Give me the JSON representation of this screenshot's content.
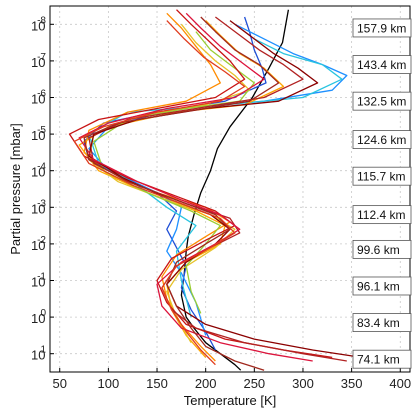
{
  "chart_data": {
    "type": "line",
    "title": "",
    "xlabel": "Temperature [K]",
    "ylabel": "Partial pressure [mbar]",
    "xlim": [
      40,
      410
    ],
    "ylim_log10": [
      1.5,
      -8.5
    ],
    "y_scale": "log",
    "y_direction": "pressure increases downward",
    "grid": true,
    "x_ticks": [
      {
        "value": 50,
        "label": "50"
      },
      {
        "value": 100,
        "label": "100"
      },
      {
        "value": 150,
        "label": "150"
      },
      {
        "value": 200,
        "label": "200"
      },
      {
        "value": 250,
        "label": "250"
      },
      {
        "value": 300,
        "label": "300"
      },
      {
        "value": 350,
        "label": "350"
      },
      {
        "value": 400,
        "label": "400"
      }
    ],
    "y_ticks": [
      {
        "value": -8,
        "label": "10",
        "exp": "-8"
      },
      {
        "value": -7,
        "label": "10",
        "exp": "-7"
      },
      {
        "value": -6,
        "label": "10",
        "exp": "-6"
      },
      {
        "value": -5,
        "label": "10",
        "exp": "-5"
      },
      {
        "value": -4,
        "label": "10",
        "exp": "-4"
      },
      {
        "value": -3,
        "label": "10",
        "exp": "-3"
      },
      {
        "value": -2,
        "label": "10",
        "exp": "-2"
      },
      {
        "value": -1,
        "label": "10",
        "exp": "-1"
      },
      {
        "value": 0,
        "label": "10",
        "exp": "0"
      },
      {
        "value": 1,
        "label": "10",
        "exp": "1"
      }
    ],
    "altitude_labels": [
      {
        "log10_pressure": -7.9,
        "label": "157.9 km"
      },
      {
        "log10_pressure": -6.9,
        "label": "143.4 km"
      },
      {
        "log10_pressure": -5.9,
        "label": "132.5 km"
      },
      {
        "log10_pressure": -4.85,
        "label": "124.6 km"
      },
      {
        "log10_pressure": -3.85,
        "label": "115.7 km"
      },
      {
        "log10_pressure": -2.8,
        "label": "112.4 km"
      },
      {
        "log10_pressure": -1.85,
        "label": "99.6 km"
      },
      {
        "log10_pressure": -0.85,
        "label": "96.1 km"
      },
      {
        "log10_pressure": 0.15,
        "label": "83.4 km"
      },
      {
        "log10_pressure": 1.15,
        "label": "74.1 km"
      }
    ],
    "series": [
      {
        "color": "#000000",
        "x": [
          285,
          279,
          265,
          248,
          225,
          212,
          205,
          195,
          188,
          182,
          180,
          178,
          175,
          180,
          188,
          200,
          215,
          230,
          236
        ],
        "y": [
          -8.4,
          -7.5,
          -6.8,
          -6.0,
          -5.2,
          -4.6,
          -4.0,
          -3.4,
          -2.8,
          -2.2,
          -1.8,
          -1.2,
          -0.6,
          0.0,
          0.3,
          0.7,
          1.0,
          1.3,
          1.45
        ]
      },
      {
        "color": "#1f4fd6",
        "x": [
          240,
          245,
          250,
          258,
          262,
          220,
          150,
          95,
          75,
          80,
          110,
          150,
          170,
          160,
          170,
          180,
          175,
          185,
          200,
          210
        ],
        "y": [
          -8.2,
          -7.8,
          -7.3,
          -6.8,
          -6.4,
          -5.9,
          -5.6,
          -5.3,
          -4.8,
          -4.3,
          -3.9,
          -3.4,
          -2.9,
          -2.4,
          -1.9,
          -1.4,
          -0.8,
          -0.2,
          0.4,
          0.9
        ]
      },
      {
        "color": "#1e90ff",
        "x": [
          230,
          260,
          290,
          320,
          345,
          330,
          260,
          170,
          100,
          80,
          100,
          150,
          175,
          170,
          160,
          175,
          190,
          200
        ],
        "y": [
          -8.0,
          -7.6,
          -7.2,
          -6.9,
          -6.6,
          -6.2,
          -5.9,
          -5.7,
          -5.2,
          -4.6,
          -4.0,
          -3.4,
          -3.0,
          -2.4,
          -1.8,
          -1.2,
          -0.4,
          0.5
        ]
      },
      {
        "color": "#29c4e0",
        "x": [
          250,
          280,
          320,
          340,
          300,
          220,
          120,
          80,
          90,
          130,
          160,
          190,
          170,
          175,
          185
        ],
        "y": [
          -7.6,
          -7.2,
          -6.9,
          -6.5,
          -6.0,
          -5.8,
          -5.6,
          -5.0,
          -4.2,
          -3.6,
          -3.0,
          -2.5,
          -1.8,
          -1.0,
          0.0
        ]
      },
      {
        "color": "#ff8c00",
        "x": [
          160,
          175,
          190,
          205,
          215,
          180,
          120,
          80,
          75,
          100,
          150,
          200,
          225,
          200,
          170,
          155,
          160,
          175,
          195,
          210
        ],
        "y": [
          -8.3,
          -7.9,
          -7.4,
          -6.9,
          -6.4,
          -5.9,
          -5.6,
          -5.1,
          -4.5,
          -3.9,
          -3.4,
          -3.0,
          -2.6,
          -2.2,
          -1.7,
          -1.1,
          -0.5,
          0.2,
          0.8,
          1.2
        ]
      },
      {
        "color": "#ffa500",
        "x": [
          200,
          215,
          235,
          260,
          280,
          240,
          170,
          100,
          70,
          90,
          140,
          190,
          220,
          215,
          180,
          160,
          165,
          180,
          200
        ],
        "y": [
          -8.1,
          -7.7,
          -7.2,
          -6.8,
          -6.3,
          -5.8,
          -5.6,
          -5.2,
          -4.7,
          -4.0,
          -3.4,
          -2.9,
          -2.5,
          -2.0,
          -1.5,
          -0.9,
          -0.2,
          0.5,
          1.1
        ]
      },
      {
        "color": "#e6c229",
        "x": [
          175,
          190,
          210,
          230,
          245,
          200,
          130,
          85,
          80,
          110,
          160,
          205,
          230,
          210,
          175,
          160,
          170,
          185
        ],
        "y": [
          -8.0,
          -7.5,
          -7.0,
          -6.6,
          -6.2,
          -5.8,
          -5.5,
          -5.0,
          -4.3,
          -3.7,
          -3.2,
          -2.8,
          -2.4,
          -1.9,
          -1.3,
          -0.7,
          0.0,
          0.7
        ]
      },
      {
        "color": "#9acd32",
        "x": [
          190,
          205,
          225,
          250,
          235,
          180,
          120,
          85,
          95,
          140,
          185,
          215,
          200,
          180,
          185,
          195
        ],
        "y": [
          -7.8,
          -7.3,
          -6.9,
          -6.4,
          -5.9,
          -5.7,
          -5.4,
          -4.8,
          -4.0,
          -3.4,
          -2.9,
          -2.5,
          -2.0,
          -1.4,
          -0.7,
          -0.1
        ]
      },
      {
        "color": "#c81414",
        "x": [
          170,
          185,
          205,
          225,
          240,
          210,
          150,
          90,
          60,
          75,
          120,
          170,
          210,
          230,
          200,
          165,
          150,
          160,
          180,
          220,
          280,
          330
        ],
        "y": [
          -8.4,
          -8.0,
          -7.5,
          -7.0,
          -6.5,
          -6.0,
          -5.7,
          -5.4,
          -5.0,
          -4.4,
          -3.8,
          -3.3,
          -2.9,
          -2.5,
          -2.1,
          -1.6,
          -1.0,
          -0.4,
          0.2,
          0.6,
          0.9,
          1.1
        ]
      },
      {
        "color": "#b22222",
        "x": [
          210,
          230,
          255,
          280,
          300,
          260,
          190,
          120,
          80,
          85,
          130,
          180,
          225,
          235,
          205,
          170,
          155,
          165,
          190,
          240,
          300,
          345
        ],
        "y": [
          -8.2,
          -7.8,
          -7.3,
          -6.9,
          -6.5,
          -6.0,
          -5.7,
          -5.4,
          -4.9,
          -4.2,
          -3.6,
          -3.1,
          -2.7,
          -2.3,
          -1.9,
          -1.4,
          -0.8,
          -0.2,
          0.3,
          0.7,
          1.0,
          1.2
        ]
      },
      {
        "color": "#8b0000",
        "x": [
          225,
          245,
          270,
          295,
          315,
          275,
          200,
          130,
          85,
          80,
          115,
          165,
          205,
          225,
          210,
          180,
          160,
          170,
          200,
          250,
          310,
          360
        ],
        "y": [
          -8.1,
          -7.7,
          -7.2,
          -6.8,
          -6.4,
          -5.9,
          -5.7,
          -5.4,
          -5.0,
          -4.4,
          -3.8,
          -3.2,
          -2.8,
          -2.4,
          -2.0,
          -1.5,
          -0.9,
          -0.3,
          0.2,
          0.6,
          0.9,
          1.1
        ]
      },
      {
        "color": "#dc143c",
        "x": [
          180,
          195,
          215,
          240,
          260,
          230,
          160,
          100,
          70,
          85,
          130,
          175,
          215,
          235,
          210,
          175,
          150,
          155,
          175,
          215,
          265,
          310
        ],
        "y": [
          -8.3,
          -7.9,
          -7.4,
          -6.9,
          -6.5,
          -6.0,
          -5.7,
          -5.3,
          -4.9,
          -4.3,
          -3.7,
          -3.2,
          -2.8,
          -2.4,
          -2.0,
          -1.5,
          -0.9,
          -0.3,
          0.3,
          0.7,
          1.0,
          1.2
        ]
      },
      {
        "color": "#a0281e",
        "x": [
          195,
          210,
          230,
          255,
          275,
          245,
          175,
          110,
          75,
          80,
          120,
          170,
          210,
          225,
          200,
          170,
          160,
          170,
          185,
          200,
          230,
          260
        ],
        "y": [
          -8.2,
          -7.8,
          -7.3,
          -6.9,
          -6.4,
          -5.9,
          -5.6,
          -5.3,
          -4.9,
          -4.3,
          -3.7,
          -3.2,
          -2.8,
          -2.4,
          -2.0,
          -1.5,
          -0.9,
          -0.3,
          0.3,
          0.8,
          1.2,
          1.45
        ]
      },
      {
        "color": "#e03c1e",
        "x": [
          160,
          178,
          198,
          220,
          240,
          215,
          150,
          95,
          65,
          80,
          125,
          175,
          215,
          230,
          205,
          170,
          155,
          165,
          180,
          195,
          210
        ],
        "y": [
          -8.1,
          -7.6,
          -7.1,
          -6.7,
          -6.3,
          -5.9,
          -5.6,
          -5.2,
          -4.8,
          -4.2,
          -3.6,
          -3.1,
          -2.7,
          -2.3,
          -1.9,
          -1.4,
          -0.8,
          -0.2,
          0.4,
          0.9,
          1.3
        ]
      }
    ]
  }
}
